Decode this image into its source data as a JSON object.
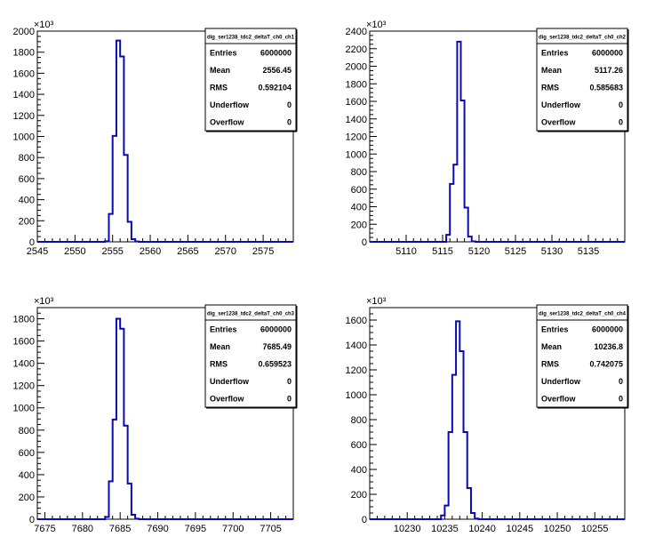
{
  "chart_data": [
    {
      "type": "histogram",
      "stats_title": "dig_ser1238_tdc2_deltaT_ch0_ch1",
      "exponent_label": "×10³",
      "xlim": [
        2545,
        2579
      ],
      "x_ticks": [
        2545,
        2550,
        2555,
        2560,
        2565,
        2570,
        2575
      ],
      "x_tick_labels": [
        "2545",
        "2550",
        "2555",
        "2560",
        "2565",
        "2570",
        "2575"
      ],
      "ylim": [
        0,
        2000
      ],
      "y_ticks": [
        0,
        200,
        400,
        600,
        800,
        1000,
        1200,
        1400,
        1600,
        1800,
        2000
      ],
      "y_tick_labels": [
        "0",
        "200",
        "400",
        "600",
        "800",
        "1000",
        "1200",
        "1400",
        "1600",
        "1800",
        "2000"
      ],
      "bin_width": 0.5,
      "bins_x": [
        2554.0,
        2554.5,
        2555.0,
        2555.5,
        2556.0,
        2556.5,
        2557.0,
        2557.5,
        2558.0
      ],
      "bins_y": [
        5,
        265,
        1005,
        1910,
        1760,
        825,
        190,
        25,
        3
      ],
      "stats": [
        {
          "label": "Entries",
          "value": "6000000"
        },
        {
          "label": "Mean",
          "value": "2556.45"
        },
        {
          "label": "RMS",
          "value": "0.592104"
        },
        {
          "label": "Underflow",
          "value": "0"
        },
        {
          "label": "Overflow",
          "value": "0"
        }
      ]
    },
    {
      "type": "histogram",
      "stats_title": "dig_ser1238_tdc2_deltaT_ch0_ch2",
      "exponent_label": "×10³",
      "xlim": [
        5105,
        5140
      ],
      "x_ticks": [
        5110,
        5115,
        5120,
        5125,
        5130,
        5135
      ],
      "x_tick_labels": [
        "5110",
        "5115",
        "5120",
        "5125",
        "5130",
        "5135"
      ],
      "ylim": [
        0,
        2400
      ],
      "y_ticks": [
        0,
        200,
        400,
        600,
        800,
        1000,
        1200,
        1400,
        1600,
        1800,
        2000,
        2200,
        2400
      ],
      "y_tick_labels": [
        "0",
        "200",
        "400",
        "600",
        "800",
        "1000",
        "1200",
        "1400",
        "1600",
        "1800",
        "2000",
        "2200",
        "2400"
      ],
      "bin_width": 0.5,
      "bins_x": [
        5115.5,
        5116.0,
        5116.5,
        5117.0,
        5117.5,
        5118.0,
        5118.5,
        5119.0
      ],
      "bins_y": [
        80,
        660,
        880,
        2280,
        1610,
        390,
        60,
        5
      ],
      "stats": [
        {
          "label": "Entries",
          "value": "6000000"
        },
        {
          "label": "Mean",
          "value": "5117.26"
        },
        {
          "label": "RMS",
          "value": "0.585683"
        },
        {
          "label": "Underflow",
          "value": "0"
        },
        {
          "label": "Overflow",
          "value": "0"
        }
      ]
    },
    {
      "type": "histogram",
      "stats_title": "dig_ser1238_tdc2_deltaT_ch0_ch3",
      "exponent_label": "×10³",
      "xlim": [
        7674,
        7708
      ],
      "x_ticks": [
        7675,
        7680,
        7685,
        7690,
        7695,
        7700,
        7705
      ],
      "x_tick_labels": [
        "7675",
        "7680",
        "7685",
        "7690",
        "7695",
        "7700",
        "7705"
      ],
      "ylim": [
        0,
        1900
      ],
      "y_ticks": [
        0,
        200,
        400,
        600,
        800,
        1000,
        1200,
        1400,
        1600,
        1800
      ],
      "y_tick_labels": [
        "0",
        "200",
        "400",
        "600",
        "800",
        "1000",
        "1200",
        "1400",
        "1600",
        "1800"
      ],
      "bin_width": 0.5,
      "bins_x": [
        7683.0,
        7683.5,
        7684.0,
        7684.5,
        7685.0,
        7685.5,
        7686.0,
        7686.5,
        7687.0
      ],
      "bins_y": [
        20,
        340,
        895,
        1800,
        1710,
        840,
        320,
        40,
        5
      ],
      "stats": [
        {
          "label": "Entries",
          "value": "6000000"
        },
        {
          "label": "Mean",
          "value": "7685.49"
        },
        {
          "label": "RMS",
          "value": "0.659523"
        },
        {
          "label": "Underflow",
          "value": "0"
        },
        {
          "label": "Overflow",
          "value": "0"
        }
      ]
    },
    {
      "type": "histogram",
      "stats_title": "dig_ser1238_tdc2_deltaT_ch0_ch4",
      "exponent_label": "×10³",
      "xlim": [
        10225,
        10259
      ],
      "x_ticks": [
        10230,
        10235,
        10240,
        10245,
        10250,
        10255
      ],
      "x_tick_labels": [
        "10230",
        "10235",
        "10240",
        "10245",
        "10250",
        "10255"
      ],
      "ylim": [
        0,
        1700
      ],
      "y_ticks": [
        0,
        200,
        400,
        600,
        800,
        1000,
        1200,
        1400,
        1600
      ],
      "y_tick_labels": [
        "0",
        "200",
        "400",
        "600",
        "800",
        "1000",
        "1200",
        "1400",
        "1600"
      ],
      "bin_width": 0.5,
      "bins_x": [
        10234.5,
        10235.0,
        10235.5,
        10236.0,
        10236.5,
        10237.0,
        10237.5,
        10238.0,
        10238.5,
        10239.0
      ],
      "bins_y": [
        30,
        110,
        700,
        1160,
        1590,
        1350,
        700,
        250,
        50,
        5
      ],
      "stats": [
        {
          "label": "Entries",
          "value": "6000000"
        },
        {
          "label": "Mean",
          "value": "10236.8"
        },
        {
          "label": "RMS",
          "value": "0.742075"
        },
        {
          "label": "Underflow",
          "value": "0"
        },
        {
          "label": "Overflow",
          "value": "0"
        }
      ]
    }
  ],
  "colors": {
    "histogram_line": "#0a0ab4",
    "axis": "#000000",
    "background": "#ffffff"
  }
}
